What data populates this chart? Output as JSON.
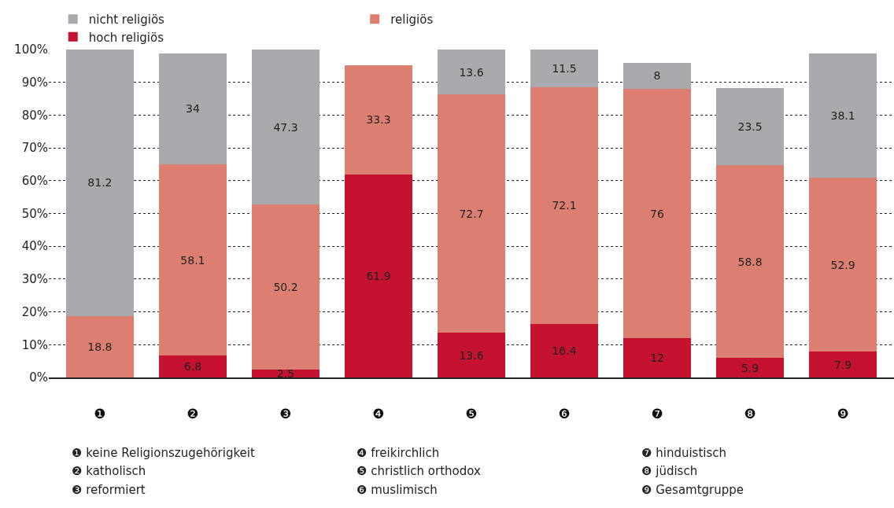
{
  "chart_data": {
    "type": "bar",
    "stacked": true,
    "data_labels": true,
    "grid": "y",
    "legend": "top",
    "categories": [
      "❶",
      "❷",
      "❸",
      "❹",
      "❺",
      "❻",
      "❼",
      "❽",
      "❾"
    ],
    "series": [
      {
        "name": "hoch religiös",
        "color": "#c41230",
        "values": [
          null,
          6.8,
          2.5,
          61.9,
          13.6,
          16.4,
          12,
          5.9,
          7.9
        ]
      },
      {
        "name": "religiös",
        "color": "#dc7f70",
        "values": [
          18.8,
          58.1,
          50.2,
          33.3,
          72.7,
          72.1,
          76,
          58.8,
          52.9
        ]
      },
      {
        "name": "nicht religiös",
        "color": "#a7a9ac",
        "values": [
          81.2,
          34,
          47.3,
          null,
          13.6,
          11.5,
          8,
          23.5,
          38.1
        ]
      }
    ],
    "ylim": [
      0,
      100
    ],
    "yticks": [
      {
        "value": 0,
        "label": "0%"
      },
      {
        "value": 10,
        "label": "10%"
      },
      {
        "value": 20,
        "label": "20%"
      },
      {
        "value": 30,
        "label": "30%"
      },
      {
        "value": 40,
        "label": "40%"
      },
      {
        "value": 50,
        "label": "50%"
      },
      {
        "value": 60,
        "label": "60%"
      },
      {
        "value": 70,
        "label": "70%"
      },
      {
        "value": 80,
        "label": "80%"
      },
      {
        "value": 90,
        "label": "90%"
      },
      {
        "value": 100,
        "label": "100%"
      }
    ],
    "annotations": [
      "❶ keine Religionszugehörigkeit",
      "❷ katholisch",
      "❸ reformiert",
      "❹ freikirchlich",
      "❺ christlich orthodox",
      "❻ muslimisch",
      "❼ hinduistisch",
      "❽ jüdisch",
      "❾ Gesamtgruppe"
    ]
  }
}
